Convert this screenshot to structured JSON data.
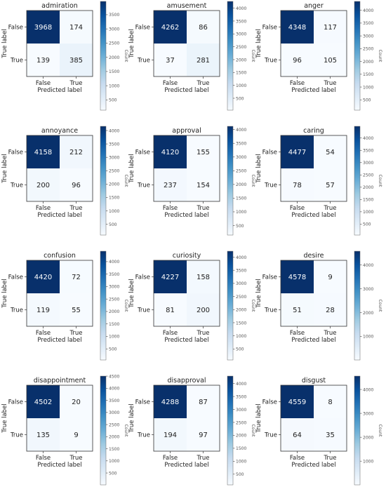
{
  "figure": {
    "xlabel": "Predicted label",
    "ylabel": "True label",
    "class_labels": [
      "False",
      "True"
    ],
    "colorbar_label": "Count",
    "cmap": [
      "#f7fbff",
      "#deebf7",
      "#c6dbef",
      "#9ecae1",
      "#6baed6",
      "#4292c6",
      "#2171b5",
      "#08519c",
      "#08306b"
    ]
  },
  "chart_data": [
    {
      "type": "heatmap",
      "title": "admiration",
      "x": [
        "False",
        "True"
      ],
      "y": [
        "False",
        "True"
      ],
      "values": [
        [
          3968,
          174
        ],
        [
          139,
          385
        ]
      ],
      "colorbar_ticks": [
        500,
        1000,
        1500,
        2000,
        2500,
        3000,
        3500
      ],
      "colorbar_range": [
        139,
        3968
      ]
    },
    {
      "type": "heatmap",
      "title": "amusement",
      "x": [
        "False",
        "True"
      ],
      "y": [
        "False",
        "True"
      ],
      "values": [
        [
          4262,
          86
        ],
        [
          37,
          281
        ]
      ],
      "colorbar_ticks": [
        500,
        1000,
        1500,
        2000,
        2500,
        3000,
        3500,
        4000
      ],
      "colorbar_range": [
        37,
        4262
      ]
    },
    {
      "type": "heatmap",
      "title": "anger",
      "x": [
        "False",
        "True"
      ],
      "y": [
        "False",
        "True"
      ],
      "values": [
        [
          4348,
          117
        ],
        [
          96,
          105
        ]
      ],
      "colorbar_ticks": [
        500,
        1000,
        1500,
        2000,
        2500,
        3000,
        3500,
        4000
      ],
      "colorbar_range": [
        96,
        4348
      ]
    },
    {
      "type": "heatmap",
      "title": "annoyance",
      "x": [
        "False",
        "True"
      ],
      "y": [
        "False",
        "True"
      ],
      "values": [
        [
          4158,
          212
        ],
        [
          200,
          96
        ]
      ],
      "colorbar_ticks": [
        500,
        1000,
        1500,
        2000,
        2500,
        3000,
        3500,
        4000
      ],
      "colorbar_range": [
        96,
        4158
      ]
    },
    {
      "type": "heatmap",
      "title": "approval",
      "x": [
        "False",
        "True"
      ],
      "y": [
        "False",
        "True"
      ],
      "values": [
        [
          4120,
          155
        ],
        [
          237,
          154
        ]
      ],
      "colorbar_ticks": [
        500,
        1000,
        1500,
        2000,
        2500,
        3000,
        3500,
        4000
      ],
      "colorbar_range": [
        154,
        4120
      ]
    },
    {
      "type": "heatmap",
      "title": "caring",
      "x": [
        "False",
        "True"
      ],
      "y": [
        "False",
        "True"
      ],
      "values": [
        [
          4477,
          54
        ],
        [
          78,
          57
        ]
      ],
      "colorbar_ticks": [
        500,
        1000,
        1500,
        2000,
        2500,
        3000,
        3500,
        4000
      ],
      "colorbar_range": [
        54,
        4477
      ]
    },
    {
      "type": "heatmap",
      "title": "confusion",
      "x": [
        "False",
        "True"
      ],
      "y": [
        "False",
        "True"
      ],
      "values": [
        [
          4420,
          72
        ],
        [
          119,
          55
        ]
      ],
      "colorbar_ticks": [
        500,
        1000,
        1500,
        2000,
        2500,
        3000,
        3500,
        4000
      ],
      "colorbar_range": [
        55,
        4420
      ]
    },
    {
      "type": "heatmap",
      "title": "curiosity",
      "x": [
        "False",
        "True"
      ],
      "y": [
        "False",
        "True"
      ],
      "values": [
        [
          4227,
          158
        ],
        [
          81,
          200
        ]
      ],
      "colorbar_ticks": [
        500,
        1000,
        1500,
        2000,
        2500,
        3000,
        3500,
        4000
      ],
      "colorbar_range": [
        81,
        4227
      ]
    },
    {
      "type": "heatmap",
      "title": "desire",
      "x": [
        "False",
        "True"
      ],
      "y": [
        "False",
        "True"
      ],
      "values": [
        [
          4578,
          9
        ],
        [
          51,
          28
        ]
      ],
      "colorbar_ticks": [
        1000,
        2000,
        3000,
        4000
      ],
      "colorbar_range": [
        9,
        4578
      ]
    },
    {
      "type": "heatmap",
      "title": "disappointment",
      "x": [
        "False",
        "True"
      ],
      "y": [
        "False",
        "True"
      ],
      "values": [
        [
          4502,
          20
        ],
        [
          135,
          9
        ]
      ],
      "colorbar_ticks": [
        500,
        1000,
        1500,
        2000,
        2500,
        3000,
        3500,
        4000,
        4500
      ],
      "colorbar_range": [
        9,
        4502
      ]
    },
    {
      "type": "heatmap",
      "title": "disapproval",
      "x": [
        "False",
        "True"
      ],
      "y": [
        "False",
        "True"
      ],
      "values": [
        [
          4288,
          87
        ],
        [
          194,
          97
        ]
      ],
      "colorbar_ticks": [
        500,
        1000,
        1500,
        2000,
        2500,
        3000,
        3500,
        4000
      ],
      "colorbar_range": [
        87,
        4288
      ]
    },
    {
      "type": "heatmap",
      "title": "disgust",
      "x": [
        "False",
        "True"
      ],
      "y": [
        "False",
        "True"
      ],
      "values": [
        [
          4559,
          8
        ],
        [
          64,
          35
        ]
      ],
      "colorbar_ticks": [
        1000,
        2000,
        3000,
        4000
      ],
      "colorbar_range": [
        8,
        4559
      ]
    }
  ]
}
